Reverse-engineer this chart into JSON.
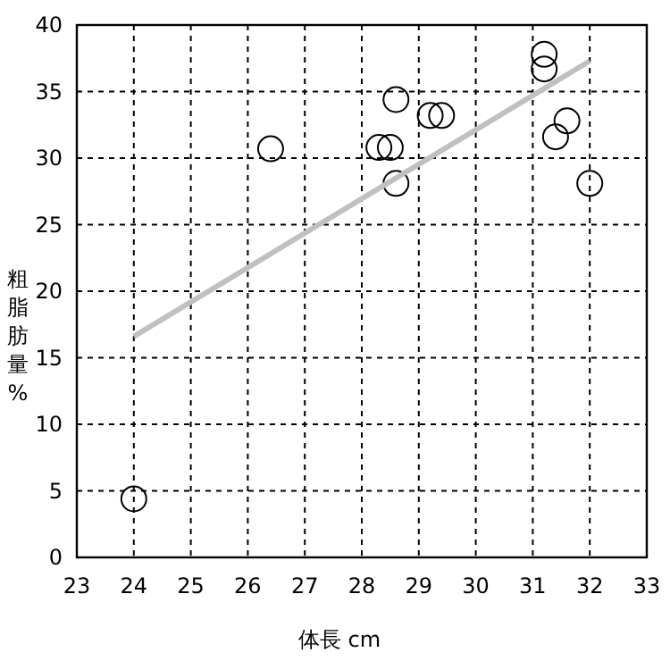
{
  "chart_data": {
    "type": "scatter",
    "xlabel": "体長 cm",
    "ylabel": "粗脂肪量%",
    "xlim": [
      23,
      33
    ],
    "xticks": [
      23,
      24,
      25,
      26,
      27,
      28,
      29,
      30,
      31,
      32,
      33
    ],
    "ylim": [
      0,
      40
    ],
    "yticks": [
      0,
      5,
      10,
      15,
      20,
      25,
      30,
      35,
      40
    ],
    "grid": true,
    "marker": "circle",
    "series": [
      {
        "color": "#000000",
        "x": [
          24.0,
          26.4,
          28.6,
          29.2,
          29.4,
          28.3,
          28.5,
          28.6,
          31.2,
          31.2,
          31.6,
          31.4,
          32.0
        ],
        "values": [
          4.4,
          30.7,
          34.4,
          33.2,
          33.2,
          30.8,
          30.8,
          28.1,
          37.8,
          36.7,
          32.8,
          31.6,
          28.1
        ]
      },
      {
        "type": "line",
        "color": "#c0c0c0",
        "marker": "none",
        "x": [
          24.0,
          32.0
        ],
        "values": [
          16.6,
          37.3
        ]
      }
    ]
  }
}
